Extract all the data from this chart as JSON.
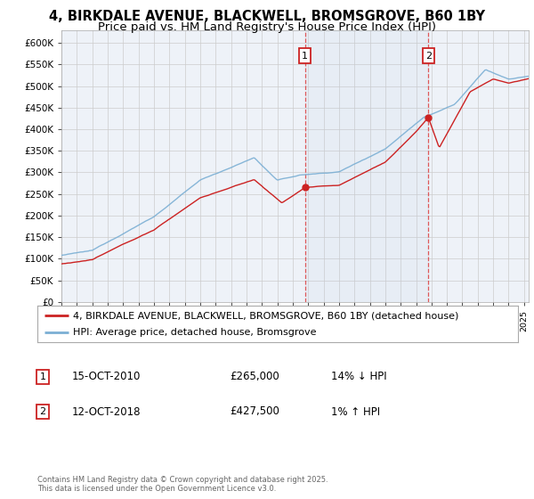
{
  "title1": "4, BIRKDALE AVENUE, BLACKWELL, BROMSGROVE, B60 1BY",
  "title2": "Price paid vs. HM Land Registry's House Price Index (HPI)",
  "hpi_color": "#7bafd4",
  "price_color": "#cc2222",
  "marker1_x": 2010.79,
  "marker1_y": 265000,
  "marker1_label": "1",
  "marker2_x": 2018.79,
  "marker2_y": 427500,
  "marker2_label": "2",
  "legend_label1": "4, BIRKDALE AVENUE, BLACKWELL, BROMSGROVE, B60 1BY (detached house)",
  "legend_label2": "HPI: Average price, detached house, Bromsgrove",
  "table_row1": [
    "1",
    "15-OCT-2010",
    "£265,000",
    "14% ↓ HPI"
  ],
  "table_row2": [
    "2",
    "12-OCT-2018",
    "£427,500",
    "1% ↑ HPI"
  ],
  "footer": "Contains HM Land Registry data © Crown copyright and database right 2025.\nThis data is licensed under the Open Government Licence v3.0.",
  "background_color": "#ffffff",
  "plot_bg_color": "#eef2f8",
  "grid_color": "#cccccc",
  "xlim_start": 1995.0,
  "xlim_end": 2025.3,
  "ylim": [
    0,
    630000
  ],
  "yticks": [
    0,
    50000,
    100000,
    150000,
    200000,
    250000,
    300000,
    350000,
    400000,
    450000,
    500000,
    550000,
    600000
  ],
  "ytick_labels": [
    "£0",
    "£50K",
    "£100K",
    "£150K",
    "£200K",
    "£250K",
    "£300K",
    "£350K",
    "£400K",
    "£450K",
    "£500K",
    "£550K",
    "£600K"
  ]
}
